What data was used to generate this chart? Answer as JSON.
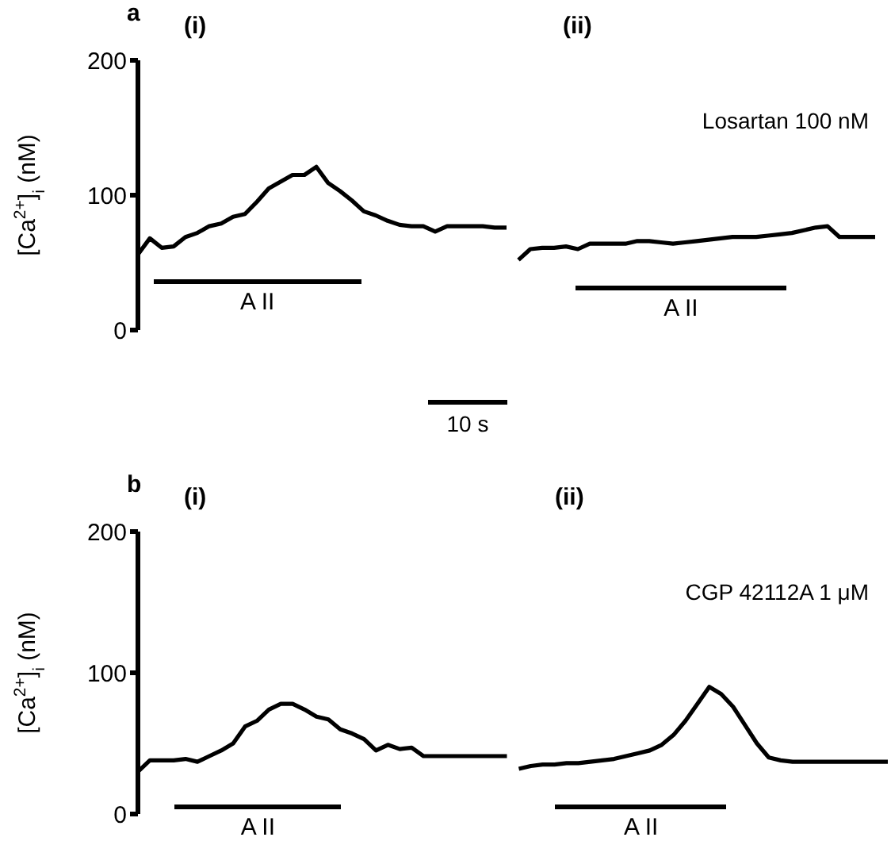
{
  "chart_data": [
    {
      "type": "line",
      "annotations": [
        "a",
        "(i)",
        "(ii)",
        "Losartan 100 nM",
        "A II",
        "A II",
        "10 s"
      ],
      "ylabel": "[Ca$^{2+}$]$_{i}$ (nM)",
      "ylim": [
        0,
        200
      ],
      "yticks": [
        0,
        100,
        200
      ],
      "tick_labels": "y",
      "categories": [
        null,
        null,
        null,
        null,
        null,
        null,
        null,
        null,
        null,
        null,
        null,
        null,
        null,
        null,
        null,
        null,
        null,
        null,
        null,
        null,
        null,
        null,
        null,
        null,
        null,
        null,
        null,
        null,
        null,
        null,
        null,
        null,
        null,
        null,
        null,
        null,
        null,
        null,
        null,
        null,
        null,
        null,
        null,
        null,
        null,
        null,
        null,
        null,
        null,
        null,
        null,
        null,
        null,
        null,
        null,
        null,
        null,
        null,
        null,
        null,
        null,
        null,
        null
      ],
      "series": [
        {
          "color": "#000000",
          "values": [
            56,
            68,
            61,
            62,
            69,
            72,
            77,
            79,
            84,
            86,
            95,
            105,
            110,
            115,
            115,
            121,
            109,
            103,
            96,
            88,
            85,
            81,
            78,
            77,
            77,
            73,
            77,
            77,
            77,
            77,
            76,
            76,
            null,
            null,
            null,
            null,
            null,
            null,
            null,
            null,
            null,
            null,
            null,
            null,
            null,
            null,
            null,
            null,
            null,
            null,
            null,
            null,
            null,
            null,
            null,
            null,
            null,
            null,
            null,
            null,
            null,
            null,
            null
          ]
        },
        {
          "color": "#000000",
          "values": [
            null,
            null,
            null,
            null,
            null,
            null,
            null,
            null,
            null,
            null,
            null,
            null,
            null,
            null,
            null,
            null,
            null,
            null,
            null,
            null,
            null,
            null,
            null,
            null,
            null,
            null,
            null,
            null,
            null,
            null,
            null,
            null,
            52,
            60,
            61,
            61,
            62,
            60,
            64,
            64,
            64,
            64,
            66,
            66,
            65,
            64,
            65,
            66,
            67,
            68,
            69,
            69,
            69,
            70,
            71,
            72,
            74,
            76,
            77,
            69,
            69,
            69,
            69
          ]
        }
      ]
    },
    {
      "type": "line",
      "annotations": [
        "b",
        "(i)",
        "(ii)",
        "CGP 42112A 1 μM",
        "A II",
        "A II"
      ],
      "ylabel": "[Ca$^{2+}$]$_{i}$ (nM)",
      "ylim": [
        0,
        200
      ],
      "yticks": [
        0,
        100,
        200
      ],
      "tick_labels": "y",
      "categories": [
        null,
        null,
        null,
        null,
        null,
        null,
        null,
        null,
        null,
        null,
        null,
        null,
        null,
        null,
        null,
        null,
        null,
        null,
        null,
        null,
        null,
        null,
        null,
        null,
        null,
        null,
        null,
        null,
        null,
        null,
        null,
        null,
        null,
        null,
        null,
        null,
        null,
        null,
        null,
        null,
        null,
        null,
        null,
        null,
        null,
        null,
        null,
        null,
        null,
        null,
        null,
        null,
        null,
        null,
        null,
        null,
        null,
        null,
        null,
        null,
        null,
        null,
        null,
        null
      ],
      "series": [
        {
          "color": "#000000",
          "values": [
            30,
            38,
            38,
            38,
            39,
            37,
            41,
            45,
            50,
            62,
            66,
            74,
            78,
            78,
            74,
            69,
            67,
            60,
            57,
            53,
            45,
            49,
            46,
            47,
            41,
            41,
            41,
            41,
            41,
            41,
            41,
            41,
            null,
            null,
            null,
            null,
            null,
            null,
            null,
            null,
            null,
            null,
            null,
            null,
            null,
            null,
            null,
            null,
            null,
            null,
            null,
            null,
            null,
            null,
            null,
            null,
            null,
            null,
            null,
            null,
            null,
            null,
            null,
            null
          ]
        },
        {
          "color": "#000000",
          "values": [
            null,
            null,
            null,
            null,
            null,
            null,
            null,
            null,
            null,
            null,
            null,
            null,
            null,
            null,
            null,
            null,
            null,
            null,
            null,
            null,
            null,
            null,
            null,
            null,
            null,
            null,
            null,
            null,
            null,
            null,
            null,
            null,
            32,
            34,
            35,
            35,
            36,
            36,
            37,
            38,
            39,
            41,
            43,
            45,
            49,
            56,
            66,
            78,
            90,
            85,
            76,
            63,
            50,
            40,
            38,
            37,
            37,
            37,
            37,
            37,
            37,
            37,
            37,
            37
          ]
        }
      ]
    }
  ]
}
